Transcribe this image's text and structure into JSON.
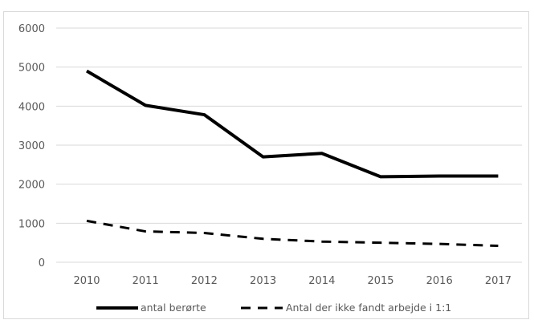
{
  "chart_data": {
    "type": "line",
    "title": "",
    "xlabel": "",
    "ylabel": "",
    "x": [
      "2010",
      "2011",
      "2012",
      "2013",
      "2014",
      "2015",
      "2016",
      "2017"
    ],
    "ylim": [
      0,
      6000
    ],
    "yticks": [
      0,
      1000,
      2000,
      3000,
      4000,
      5000,
      6000
    ],
    "grid": true,
    "legend_position": "bottom",
    "series": [
      {
        "name": "antal berørte",
        "values": [
          4900,
          4020,
          3780,
          2700,
          2790,
          2190,
          2210,
          2210
        ],
        "color": "#000000",
        "style": "solid"
      },
      {
        "name": "Antal der ikke fandt arbejde i 1:1",
        "values": [
          1060,
          790,
          750,
          600,
          530,
          500,
          470,
          420
        ],
        "color": "#000000",
        "style": "dashed"
      }
    ]
  }
}
